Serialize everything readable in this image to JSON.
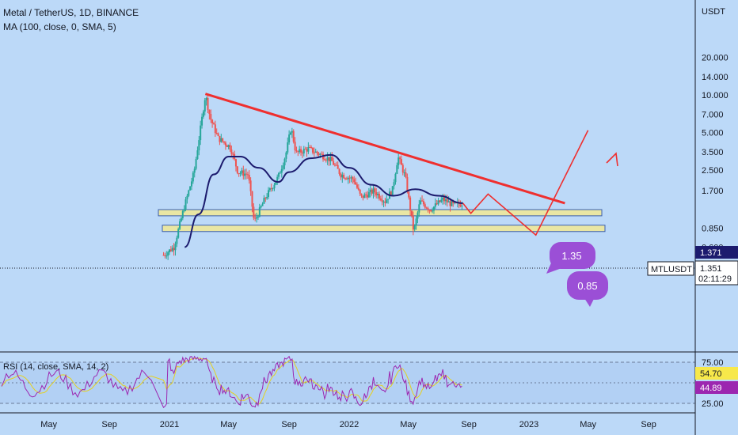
{
  "header": {
    "title": "Metal / TetherUS, 1D, BINANCE",
    "indicator": "MA (100, close, 0, SMA, 5)"
  },
  "price_axis": {
    "currency": "USDT",
    "ticks": [
      "20.000",
      "14.000",
      "10.000",
      "7.000",
      "5.000",
      "3.500",
      "2.500",
      "1.700",
      "0.850",
      "0.600"
    ]
  },
  "rsi_axis": {
    "ticks": [
      "75.00",
      "25.00"
    ]
  },
  "time_axis": {
    "labels": [
      "May",
      "Sep",
      "2021",
      "May",
      "Sep",
      "2022",
      "May",
      "Sep",
      "2023",
      "May",
      "Sep"
    ]
  },
  "tags": {
    "price_high": "1.371",
    "symbol": "MTLUSDT",
    "price_last": "1.351",
    "countdown": "02:11:29",
    "rsi_value": "54.70",
    "rsi_ma": "44.89"
  },
  "rsi": {
    "label": "RSI (14, close, SMA, 14, 2)"
  },
  "annotations": {
    "bubble_upper": "1.35",
    "bubble_lower": "0.85"
  },
  "colors": {
    "background": "#bcd9f8",
    "up_candle": "#26a69a",
    "down_candle": "#ef5350",
    "ma_line": "#1c1b6e",
    "trendline": "#ef2f2f",
    "zone_fill": "#e9e6a3",
    "zone_border": "#3a5fb0",
    "bubble": "#9b4fd6",
    "rsi_line": "#9c27b0",
    "rsi_ma": "#e6d020"
  },
  "chart_data": {
    "type": "candlestick",
    "symbol": "MTLUSDT",
    "exchange": "BINANCE",
    "timeframe": "1D",
    "y_scale": "log",
    "ylim": [
      0.45,
      26
    ],
    "price_path": [
      {
        "date": "2020-12-15",
        "price": 0.5
      },
      {
        "date": "2021-01-10",
        "price": 0.6
      },
      {
        "date": "2021-02-01",
        "price": 1.3
      },
      {
        "date": "2021-02-20",
        "price": 2.4
      },
      {
        "date": "2021-03-15",
        "price": 10.0
      },
      {
        "date": "2021-03-25",
        "price": 6.5
      },
      {
        "date": "2021-04-10",
        "price": 4.5
      },
      {
        "date": "2021-05-05",
        "price": 3.8
      },
      {
        "date": "2021-05-20",
        "price": 2.4
      },
      {
        "date": "2021-06-10",
        "price": 2.3
      },
      {
        "date": "2021-06-22",
        "price": 0.95
      },
      {
        "date": "2021-07-15",
        "price": 1.5
      },
      {
        "date": "2021-08-10",
        "price": 2.2
      },
      {
        "date": "2021-08-25",
        "price": 3.3
      },
      {
        "date": "2021-09-05",
        "price": 5.5
      },
      {
        "date": "2021-09-15",
        "price": 3.4
      },
      {
        "date": "2021-10-10",
        "price": 3.7
      },
      {
        "date": "2021-11-05",
        "price": 3.3
      },
      {
        "date": "2021-11-25",
        "price": 3.0
      },
      {
        "date": "2021-12-15",
        "price": 2.3
      },
      {
        "date": "2022-01-10",
        "price": 2.1
      },
      {
        "date": "2022-01-25",
        "price": 1.5
      },
      {
        "date": "2022-02-20",
        "price": 1.7
      },
      {
        "date": "2022-03-15",
        "price": 1.4
      },
      {
        "date": "2022-03-30",
        "price": 1.75
      },
      {
        "date": "2022-04-10",
        "price": 3.2
      },
      {
        "date": "2022-04-25",
        "price": 2.2
      },
      {
        "date": "2022-05-12",
        "price": 0.8
      },
      {
        "date": "2022-05-25",
        "price": 1.4
      },
      {
        "date": "2022-06-15",
        "price": 1.2
      },
      {
        "date": "2022-07-10",
        "price": 1.45
      },
      {
        "date": "2022-08-01",
        "price": 1.3
      },
      {
        "date": "2022-08-20",
        "price": 1.35
      }
    ],
    "ma100": [
      {
        "date": "2021-02-01",
        "value": 0.6
      },
      {
        "date": "2021-03-01",
        "value": 1.1
      },
      {
        "date": "2021-04-01",
        "value": 2.3
      },
      {
        "date": "2021-05-01",
        "value": 3.2
      },
      {
        "date": "2021-05-25",
        "value": 3.2
      },
      {
        "date": "2021-07-01",
        "value": 2.6
      },
      {
        "date": "2021-08-10",
        "value": 2.0
      },
      {
        "date": "2021-09-01",
        "value": 2.4
      },
      {
        "date": "2021-10-15",
        "value": 3.1
      },
      {
        "date": "2021-11-25",
        "value": 3.3
      },
      {
        "date": "2022-01-01",
        "value": 2.6
      },
      {
        "date": "2022-02-15",
        "value": 1.9
      },
      {
        "date": "2022-04-01",
        "value": 1.55
      },
      {
        "date": "2022-05-15",
        "value": 1.75
      },
      {
        "date": "2022-07-01",
        "value": 1.55
      },
      {
        "date": "2022-08-20",
        "value": 1.35
      }
    ],
    "trendline": [
      {
        "date": "2021-03-15",
        "price": 10.2
      },
      {
        "date": "2023-03-15",
        "price": 1.35
      }
    ],
    "support_zones": [
      {
        "low": 1.07,
        "high": 1.2
      },
      {
        "low": 0.8,
        "high": 0.9
      }
    ],
    "projection_path": [
      {
        "date": "2022-08-20",
        "price": 1.35
      },
      {
        "date": "2022-09-05",
        "price": 1.12
      },
      {
        "date": "2022-10-10",
        "price": 1.6
      },
      {
        "date": "2023-01-15",
        "price": 0.75
      },
      {
        "date": "2023-05-01",
        "price": 5.2
      }
    ],
    "last_price": 1.351,
    "rsi_ticks": [
      75,
      25
    ],
    "rsi_last": 54.7,
    "rsi_ma_last": 44.89
  }
}
